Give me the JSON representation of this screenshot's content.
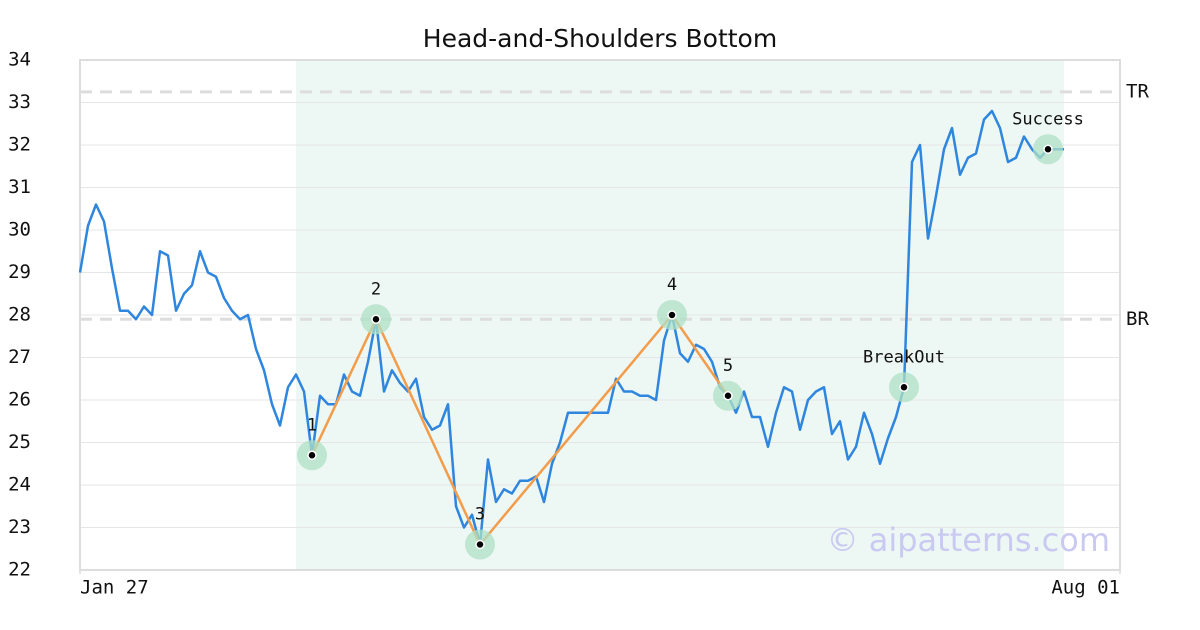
{
  "chart_data": {
    "type": "line",
    "title": "Head-and-Shoulders Bottom",
    "color": "#2e86de",
    "pattern_color": "#f39c4a",
    "grid": true,
    "x": [
      0,
      1,
      2,
      3,
      4,
      5,
      6,
      7,
      8,
      9,
      10,
      11,
      12,
      13,
      14,
      15,
      16,
      17,
      18,
      19,
      20,
      21,
      22,
      23,
      24,
      25,
      26,
      27,
      28,
      29,
      30,
      31,
      32,
      33,
      34,
      35,
      36,
      37,
      38,
      39,
      40,
      41,
      42,
      43,
      44,
      45,
      46,
      47,
      48,
      49,
      50,
      51,
      52,
      53,
      54,
      55,
      56,
      57,
      58,
      59,
      60,
      61,
      62,
      63,
      64,
      65,
      66,
      67,
      68,
      69,
      70,
      71,
      72,
      73,
      74,
      75,
      76,
      77,
      78,
      79,
      80,
      81,
      82,
      83,
      84,
      85,
      86,
      87,
      88,
      89,
      90,
      91,
      92,
      93,
      94,
      95,
      96,
      97,
      98,
      99,
      100,
      101,
      102,
      103,
      104,
      105,
      106,
      107,
      108,
      109,
      110,
      111,
      112,
      113,
      114,
      115,
      116,
      117,
      118,
      119,
      120,
      121,
      122,
      123
    ],
    "values": [
      29.0,
      30.1,
      30.6,
      30.2,
      29.1,
      28.1,
      28.1,
      27.9,
      28.2,
      28.0,
      29.5,
      29.4,
      28.1,
      28.5,
      28.7,
      29.5,
      29.0,
      28.9,
      28.4,
      28.1,
      27.9,
      28.0,
      27.2,
      26.7,
      25.9,
      25.4,
      26.3,
      26.6,
      26.2,
      24.7,
      26.1,
      25.9,
      25.9,
      26.6,
      26.2,
      26.1,
      26.9,
      27.9,
      26.2,
      26.7,
      26.4,
      26.2,
      26.5,
      25.6,
      25.3,
      25.4,
      25.9,
      23.5,
      23.0,
      23.3,
      22.6,
      24.6,
      23.6,
      23.9,
      23.8,
      24.1,
      24.1,
      24.2,
      23.6,
      24.5,
      25.0,
      25.7,
      25.7,
      25.7,
      25.7,
      25.7,
      25.7,
      26.5,
      26.2,
      26.2,
      26.1,
      26.1,
      26.0,
      27.4,
      28.0,
      27.1,
      26.9,
      27.3,
      27.2,
      26.9,
      26.3,
      26.1,
      25.7,
      26.2,
      25.6,
      25.6,
      24.9,
      25.7,
      26.3,
      26.2,
      25.3,
      26.0,
      26.2,
      26.3,
      25.2,
      25.5,
      24.6,
      24.9,
      25.7,
      25.2,
      24.5,
      25.1,
      25.6,
      26.3,
      31.6,
      32.0,
      29.8,
      30.8,
      31.9,
      32.4,
      31.3,
      31.7,
      31.8,
      32.6,
      32.8,
      32.4,
      31.6,
      31.7,
      32.2,
      31.9,
      31.7,
      31.9,
      31.9,
      31.9
    ],
    "xlim": [
      0,
      130
    ],
    "xticks": [
      {
        "value": 0,
        "label": "Jan 27"
      },
      {
        "value": 130,
        "label": "Aug 01"
      }
    ],
    "ylim": [
      22,
      34
    ],
    "yticks": [
      22,
      23,
      24,
      25,
      26,
      27,
      28,
      29,
      30,
      31,
      32,
      33,
      34
    ],
    "highlight_xlim": [
      27,
      123
    ],
    "levels": [
      {
        "label": "TR",
        "value": 33.25
      },
      {
        "label": "BR",
        "value": 27.9
      }
    ],
    "pattern_points": [
      {
        "label": "1",
        "x": 29,
        "y": 24.7
      },
      {
        "label": "2",
        "x": 37,
        "y": 27.9
      },
      {
        "label": "3",
        "x": 50,
        "y": 22.6
      },
      {
        "label": "4",
        "x": 74,
        "y": 28.0
      },
      {
        "label": "5",
        "x": 81,
        "y": 26.1
      }
    ],
    "events": [
      {
        "label": "BreakOut",
        "x": 103,
        "y": 26.3
      },
      {
        "label": "Success",
        "x": 121,
        "y": 31.9
      }
    ],
    "watermark": "© aipatterns.com"
  }
}
